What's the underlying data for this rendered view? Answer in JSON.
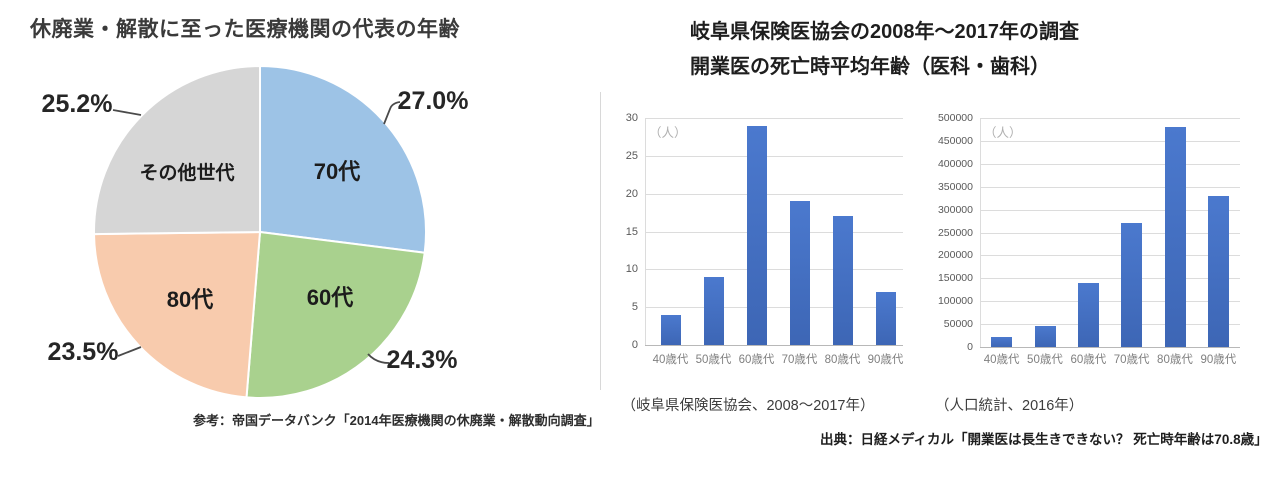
{
  "right_panel": {
    "title_line1": "岐阜県保険医協会の2008年〜2017年の調査",
    "title_line2": "開業医の死亡時平均年齢（医科・歯科）",
    "source": "出典：日経メディカル「開業医は長生きできない？ 死亡時年齢は70.8歳」"
  },
  "chart_data": [
    {
      "type": "pie",
      "title": "休廃業・解散に至った医療機関の代表の年齢",
      "start_angle_deg": 0,
      "direction": "clockwise",
      "slices": [
        {
          "label": "70代",
          "value": 27.0,
          "display": "27.0%",
          "color": "#9DC3E6"
        },
        {
          "label": "60代",
          "value": 24.3,
          "display": "24.3%",
          "color": "#A9D18E"
        },
        {
          "label": "80代",
          "value": 23.5,
          "display": "23.5%",
          "color": "#F8CBAD"
        },
        {
          "label": "その他世代",
          "value": 25.2,
          "display": "25.2%",
          "color": "#D6D6D6"
        }
      ],
      "source": "参考：帝国データバンク「2014年医療機関の休廃業・解散動向調査」"
    },
    {
      "type": "bar",
      "unit_label": "（人）",
      "categories": [
        "40歳代",
        "50歳代",
        "60歳代",
        "70歳代",
        "80歳代",
        "90歳代"
      ],
      "values": [
        4,
        9,
        29,
        19,
        17,
        7
      ],
      "ylim": [
        0,
        30
      ],
      "ytick_step": 5,
      "grid": true,
      "legend": "none",
      "bar_color_top": "#4B79CE",
      "bar_color_bottom": "#3D66B5",
      "caption": "（岐阜県保険医協会、2008〜2017年）"
    },
    {
      "type": "bar",
      "unit_label": "（人）",
      "categories": [
        "40歳代",
        "50歳代",
        "60歳代",
        "70歳代",
        "80歳代",
        "90歳代"
      ],
      "values": [
        22000,
        47000,
        140000,
        270000,
        480000,
        330000
      ],
      "ylim": [
        0,
        500000
      ],
      "ytick_step": 50000,
      "grid": true,
      "legend": "none",
      "bar_color_top": "#4B79CE",
      "bar_color_bottom": "#3D66B5",
      "caption": "（人口統計、2016年）"
    }
  ]
}
